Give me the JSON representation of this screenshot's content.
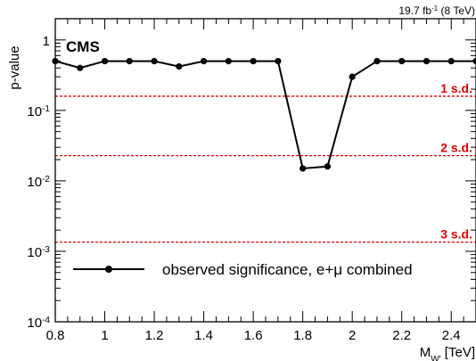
{
  "chart_data": {
    "type": "line",
    "lumi_label": {
      "prefix": "19.7 fb",
      "sup": "-1",
      "suffix": " (8 TeV)"
    },
    "experiment_label": "CMS",
    "ylabel": "p-value",
    "xlabel": {
      "main": "M",
      "sub": "W'",
      "unit": " [TeV]"
    },
    "xlim": [
      0.8,
      2.5
    ],
    "ylim": [
      0.0001,
      2
    ],
    "yscale": "log",
    "x_ticks": [
      {
        "value": 0.8,
        "label": "0.8"
      },
      {
        "value": 1.0,
        "label": "1"
      },
      {
        "value": 1.2,
        "label": "1.2"
      },
      {
        "value": 1.4,
        "label": "1.4"
      },
      {
        "value": 1.6,
        "label": "1.6"
      },
      {
        "value": 1.8,
        "label": "1.8"
      },
      {
        "value": 2.0,
        "label": "2"
      },
      {
        "value": 2.2,
        "label": "2.2"
      },
      {
        "value": 2.4,
        "label": "2.4"
      }
    ],
    "y_ticks": [
      {
        "value": 1,
        "base": "1",
        "exp": ""
      },
      {
        "value": 0.1,
        "base": "10",
        "exp": "-1"
      },
      {
        "value": 0.01,
        "base": "10",
        "exp": "-2"
      },
      {
        "value": 0.001,
        "base": "10",
        "exp": "-3"
      },
      {
        "value": 0.0001,
        "base": "10",
        "exp": "-4"
      }
    ],
    "reference_lines": [
      {
        "label": "1 s.d.",
        "value": 0.159,
        "color": "#e00000"
      },
      {
        "label": "2 s.d.",
        "value": 0.0228,
        "color": "#e00000"
      },
      {
        "label": "3 s.d.",
        "value": 0.00135,
        "color": "#e00000"
      }
    ],
    "series": [
      {
        "name": "observed significance, e+μ combined",
        "color": "#000000",
        "x": [
          0.8,
          0.9,
          1.0,
          1.1,
          1.2,
          1.3,
          1.4,
          1.5,
          1.6,
          1.7,
          1.8,
          1.9,
          2.0,
          2.1,
          2.2,
          2.3,
          2.4,
          2.5
        ],
        "y": [
          0.5,
          0.4,
          0.5,
          0.5,
          0.5,
          0.42,
          0.5,
          0.5,
          0.5,
          0.5,
          0.015,
          0.016,
          0.3,
          0.5,
          0.5,
          0.5,
          0.5,
          0.5
        ]
      }
    ],
    "legend_position": "bottom"
  }
}
